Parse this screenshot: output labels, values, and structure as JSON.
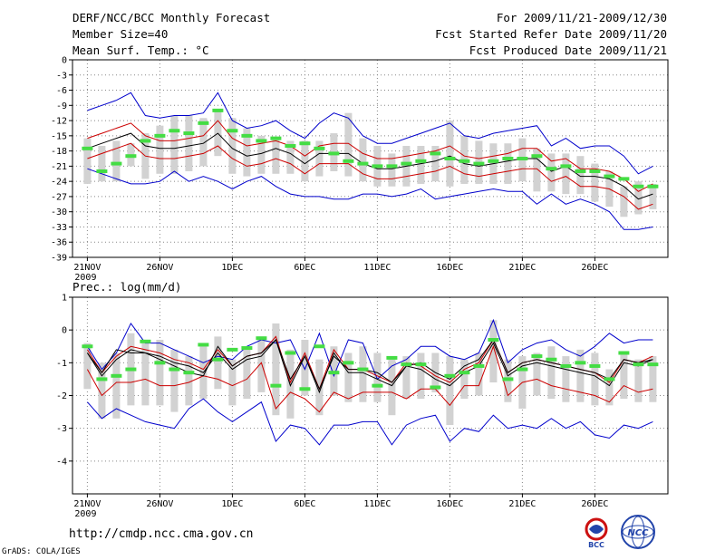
{
  "header": {
    "title": "DERF/NCC/BCC Monthly Forecast",
    "member_size": "Member Size=40",
    "variable": "Mean Surf. Temp.: °C",
    "period": "For 2009/11/21-2009/12/30",
    "fcst_started": "Fcst Started Refer Date 2009/11/20",
    "fcst_produced": "Fcst Produced Date 2009/11/21"
  },
  "footer": {
    "url": "http://cmdp.ncc.cma.gov.cn",
    "credit": "GrADS: COLA/IGES",
    "logo_left_text": "BCC",
    "logo_right_text": "NCC"
  },
  "colors": {
    "envelope": "#0000cc",
    "spread": "#cc0000",
    "mean": "#000000",
    "ensemble_bar": "#d2d2d2",
    "observed_marker": "#44dd44",
    "grid": "#888888"
  },
  "chart_data": [
    {
      "type": "line",
      "title": "Mean Surf. Temp.: °C",
      "x_tick_labels": [
        "21NOV",
        "26NOV",
        "1DEC",
        "6DEC",
        "11DEC",
        "16DEC",
        "21DEC",
        "26DEC"
      ],
      "x_year_label": "2009",
      "x_tick_days": [
        1,
        6,
        11,
        16,
        21,
        26,
        31,
        36
      ],
      "xlim": [
        1,
        40
      ],
      "ylim": [
        -39,
        0
      ],
      "y_ticks": [
        0,
        -3,
        -6,
        -9,
        -12,
        -15,
        -18,
        -21,
        -24,
        -27,
        -30,
        -33,
        -36,
        -39
      ],
      "series": [
        {
          "name": "max",
          "values": [
            -10,
            -9,
            -8,
            -6.5,
            -11,
            -11.5,
            -11,
            -11,
            -10.5,
            -6.5,
            -12,
            -13.5,
            -13,
            -12,
            -14,
            -15.5,
            -12.5,
            -10.5,
            -11.5,
            -15,
            -16.5,
            -16.5,
            -15.5,
            -14.5,
            -13.5,
            -12.5,
            -15,
            -15.5,
            -14.5,
            -14,
            -13.5,
            -13,
            -17,
            -15.5,
            -17.5,
            -17,
            -17,
            -19,
            -22.5,
            -21
          ]
        },
        {
          "name": "upper",
          "values": [
            -15.5,
            -14.5,
            -13.5,
            -12.5,
            -15,
            -16,
            -16,
            -15.5,
            -15,
            -12,
            -15.5,
            -17,
            -16.5,
            -16,
            -17,
            -19,
            -17,
            -16.5,
            -16.5,
            -18.5,
            -19.5,
            -19.5,
            -19,
            -18.5,
            -18,
            -17,
            -19,
            -19.5,
            -19,
            -18.5,
            -17.5,
            -17.5,
            -20,
            -19.5,
            -21.5,
            -21.5,
            -22,
            -23.5,
            -26,
            -24.5
          ]
        },
        {
          "name": "mean",
          "values": [
            -17.5,
            -16.5,
            -15.5,
            -14.5,
            -17,
            -17.5,
            -17.5,
            -17,
            -16.5,
            -14.5,
            -17.5,
            -19,
            -18.5,
            -17.5,
            -18.5,
            -20.5,
            -18.5,
            -18.5,
            -18.5,
            -20.5,
            -21.5,
            -21.5,
            -21,
            -20.5,
            -20,
            -19,
            -20.5,
            -21,
            -20.5,
            -20,
            -19.5,
            -19.5,
            -22,
            -21,
            -23,
            -23,
            -23.5,
            -25,
            -27.5,
            -26.5
          ]
        },
        {
          "name": "lower",
          "values": [
            -19.5,
            -18.5,
            -17.5,
            -16.5,
            -19,
            -19.5,
            -19.5,
            -19,
            -18.5,
            -17,
            -19.5,
            -21,
            -20.5,
            -19.5,
            -20.5,
            -22.5,
            -20.5,
            -20.5,
            -20.5,
            -22.5,
            -23.5,
            -23.5,
            -23,
            -22.5,
            -22,
            -21,
            -22.5,
            -23,
            -22.5,
            -22,
            -21.5,
            -21.5,
            -24,
            -23,
            -25,
            -25,
            -25.5,
            -27,
            -29.5,
            -28.5
          ]
        },
        {
          "name": "min",
          "values": [
            -21.5,
            -22.5,
            -23.5,
            -24.5,
            -24.5,
            -24,
            -22,
            -24,
            -23,
            -24,
            -25.5,
            -24,
            -23,
            -25,
            -26.5,
            -27,
            -27,
            -27.5,
            -27.5,
            -26.5,
            -26.5,
            -27,
            -26.5,
            -25.5,
            -27.5,
            -27,
            -26.5,
            -26,
            -25.5,
            -26,
            -26,
            -28.5,
            -26.5,
            -28.5,
            -27.5,
            -28.5,
            -30,
            -33.5,
            -33.5,
            -33
          ]
        }
      ],
      "ensemble_bars": [
        [
          -24.5,
          -15.5
        ],
        [
          -24,
          -17
        ],
        [
          -24,
          -16
        ],
        [
          -21,
          -16.5
        ],
        [
          -23.5,
          -14.5
        ],
        [
          -22.5,
          -13
        ],
        [
          -22.5,
          -11
        ],
        [
          -22,
          -11
        ],
        [
          -21,
          -11.5
        ],
        [
          -19,
          -10
        ],
        [
          -22.5,
          -11.5
        ],
        [
          -23,
          -13.5
        ],
        [
          -22.5,
          -15
        ],
        [
          -22.5,
          -15.5
        ],
        [
          -22.5,
          -16
        ],
        [
          -24,
          -16
        ],
        [
          -23,
          -16
        ],
        [
          -22,
          -14.5
        ],
        [
          -23,
          -10.5
        ],
        [
          -24,
          -15.5
        ],
        [
          -25,
          -17
        ],
        [
          -25,
          -18.5
        ],
        [
          -25,
          -17
        ],
        [
          -24.5,
          -17
        ],
        [
          -24,
          -17
        ],
        [
          -25,
          -12
        ],
        [
          -24.5,
          -15
        ],
        [
          -24.5,
          -16
        ],
        [
          -24.5,
          -16.5
        ],
        [
          -24.5,
          -16.5
        ],
        [
          -24,
          -15.5
        ],
        [
          -26,
          -17.5
        ],
        [
          -26,
          -18.5
        ],
        [
          -26.5,
          -18.5
        ],
        [
          -26.5,
          -19
        ],
        [
          -28,
          -20.5
        ],
        [
          -29,
          -22
        ],
        [
          -31,
          -25
        ],
        [
          -30.5,
          -24
        ],
        [
          -29.5,
          -24.5
        ]
      ],
      "observed": [
        -17.5,
        -22,
        -20.5,
        -19,
        -16,
        -15,
        -14,
        -14.5,
        -12.5,
        -10,
        -14,
        -15,
        -16,
        -15.5,
        -17,
        -16.5,
        -17.5,
        -18.5,
        -20,
        -20.5,
        -21,
        -21,
        -20.5,
        -20,
        -18.5,
        -19.5,
        -20,
        -20.5,
        -20,
        -19.5,
        -19.5,
        -19,
        -21.5,
        -21,
        -22,
        -22,
        -23,
        -23.5,
        -25,
        -25
      ]
    },
    {
      "type": "line",
      "title": "Prec.: log(mm/d)",
      "x_tick_labels": [
        "21NOV",
        "26NOV",
        "1DEC",
        "6DEC",
        "11DEC",
        "16DEC",
        "21DEC",
        "26DEC"
      ],
      "x_year_label": "2009",
      "x_tick_days": [
        1,
        6,
        11,
        16,
        21,
        26,
        31,
        36
      ],
      "xlim": [
        1,
        40
      ],
      "ylim": [
        -5,
        1
      ],
      "y_ticks": [
        1,
        0,
        -1,
        -2,
        -3,
        -4
      ],
      "series": [
        {
          "name": "max",
          "values": [
            -0.5,
            -1.2,
            -0.7,
            0.2,
            -0.4,
            -0.4,
            -0.6,
            -0.8,
            -1,
            -0.8,
            -0.9,
            -0.5,
            -0.3,
            -0.4,
            -0.3,
            -1.2,
            -0.1,
            -1.4,
            -0.3,
            -0.4,
            -1.5,
            -1.1,
            -0.9,
            -0.5,
            -0.5,
            -0.8,
            -0.9,
            -0.7,
            0.3,
            -1,
            -0.6,
            -0.4,
            -0.3,
            -0.6,
            -0.8,
            -0.5,
            -0.1,
            -0.4,
            -0.3,
            -0.3
          ]
        },
        {
          "name": "upper",
          "values": [
            -0.6,
            -1.3,
            -0.8,
            -0.5,
            -0.6,
            -0.7,
            -0.9,
            -1,
            -1.2,
            -0.6,
            -1.1,
            -0.8,
            -0.7,
            -0.2,
            -1.6,
            -0.7,
            -1.8,
            -0.6,
            -1.2,
            -1.2,
            -1.4,
            -1.6,
            -1,
            -1.1,
            -1.4,
            -1.6,
            -1.2,
            -1,
            -0.3,
            -1.3,
            -1,
            -0.9,
            -1,
            -1.1,
            -1.2,
            -1.3,
            -1.6,
            -0.9,
            -1,
            -0.8
          ]
        },
        {
          "name": "mean",
          "values": [
            -0.7,
            -1.4,
            -0.9,
            -0.6,
            -0.7,
            -0.8,
            -1,
            -1.1,
            -1.3,
            -0.7,
            -1.2,
            -0.9,
            -0.8,
            -0.3,
            -1.7,
            -0.8,
            -1.9,
            -0.7,
            -1.3,
            -1.3,
            -1.5,
            -1.7,
            -1.1,
            -1.2,
            -1.5,
            -1.7,
            -1.3,
            -1.1,
            -0.4,
            -1.4,
            -1.1,
            -1,
            -1.1,
            -1.2,
            -1.3,
            -1.4,
            -1.7,
            -1,
            -1.1,
            -0.9
          ]
        },
        {
          "name": "lower",
          "values": [
            -1.2,
            -2,
            -1.6,
            -1.6,
            -1.5,
            -1.7,
            -1.7,
            -1.6,
            -1.4,
            -1.5,
            -1.7,
            -1.5,
            -1,
            -2.4,
            -1.9,
            -2.1,
            -2.5,
            -1.9,
            -2.1,
            -1.9,
            -1.9,
            -1.9,
            -2.1,
            -1.8,
            -1.8,
            -2.3,
            -1.7,
            -1.7,
            -0.5,
            -2,
            -1.6,
            -1.5,
            -1.7,
            -1.8,
            -1.9,
            -2,
            -2.2,
            -1.7,
            -1.9,
            -1.8
          ]
        },
        {
          "name": "min",
          "values": [
            -2.2,
            -2.7,
            -2.4,
            -2.6,
            -2.8,
            -2.9,
            -3,
            -2.4,
            -2.1,
            -2.5,
            -2.8,
            -2.5,
            -2.2,
            -3.4,
            -2.9,
            -3,
            -3.5,
            -2.9,
            -2.9,
            -2.8,
            -2.8,
            -3.5,
            -2.9,
            -2.7,
            -2.6,
            -3.4,
            -3,
            -3.1,
            -2.6,
            -3,
            -2.9,
            -3,
            -2.7,
            -3,
            -2.8,
            -3.2,
            -3.3,
            -2.9,
            -3,
            -2.8
          ]
        },
        {
          "name": "ensemble_mean_black",
          "values": [
            -0.7,
            -1.3,
            -0.6,
            -0.7,
            -0.7,
            -0.9,
            -1.1,
            -1.3,
            -1.4,
            -0.5,
            -1.1,
            -0.8,
            -0.7,
            -0.3,
            -1.5,
            -0.8,
            -1.8,
            -0.8,
            -1.2,
            -1.2,
            -1.3,
            -1.6,
            -1.1,
            -1,
            -1.3,
            -1.5,
            -1.1,
            -0.9,
            -0.3,
            -1.3,
            -1,
            -0.9,
            -1,
            -1.1,
            -1.2,
            -1.3,
            -1.5,
            -0.9,
            -1,
            -0.9
          ]
        }
      ],
      "ensemble_bars": [
        [
          -1.8,
          -0.4
        ],
        [
          -2.7,
          -1
        ],
        [
          -2.7,
          -0.7
        ],
        [
          -2.3,
          -0.1
        ],
        [
          -2.3,
          -0.4
        ],
        [
          -2.3,
          -0.3
        ],
        [
          -2.5,
          -0.6
        ],
        [
          -2.3,
          -0.8
        ],
        [
          -2.1,
          -0.4
        ],
        [
          -1.8,
          -0.2
        ],
        [
          -2.3,
          -0.9
        ],
        [
          -2.1,
          -0.5
        ],
        [
          -1.9,
          -0.2
        ],
        [
          -2.6,
          0.2
        ],
        [
          -2.7,
          -0.6
        ],
        [
          -2,
          -0.3
        ],
        [
          -2.6,
          -0.9
        ],
        [
          -2,
          -0.5
        ],
        [
          -2.2,
          -0.7
        ],
        [
          -2.2,
          -0.5
        ],
        [
          -2.2,
          -0.7
        ],
        [
          -2.6,
          -0.9
        ],
        [
          -2.1,
          -0.8
        ],
        [
          -2.1,
          -0.7
        ],
        [
          -1.9,
          -0.7
        ],
        [
          -2.9,
          -0.8
        ],
        [
          -2.1,
          -0.9
        ],
        [
          -2,
          -0.7
        ],
        [
          -1.6,
          0.3
        ],
        [
          -2.2,
          -0.9
        ],
        [
          -2.4,
          -0.8
        ],
        [
          -2,
          -0.7
        ],
        [
          -2.1,
          -0.5
        ],
        [
          -2.2,
          -0.8
        ],
        [
          -2.2,
          -0.6
        ],
        [
          -2.3,
          -0.7
        ],
        [
          -2.3,
          -1.2
        ],
        [
          -2.1,
          -0.7
        ],
        [
          -2.2,
          -0.9
        ],
        [
          -2.2,
          -0.8
        ]
      ],
      "observed": [
        -0.5,
        -1.5,
        -1.4,
        -1.2,
        -0.35,
        -1,
        -1.2,
        -1.3,
        -0.45,
        -0.9,
        -0.6,
        -0.55,
        -0.25,
        -1.7,
        -0.7,
        -1.8,
        -0.5,
        -1.3,
        -1,
        -1.2,
        -1.7,
        -0.85,
        -1.05,
        -1.05,
        -1.75,
        -1.4,
        -1.3,
        -1.1,
        -0.3,
        -1.5,
        -1.2,
        -0.8,
        -0.9,
        -1.1,
        -1,
        -1.1,
        -1.5,
        -0.7,
        -1.05,
        -1.05
      ]
    }
  ]
}
